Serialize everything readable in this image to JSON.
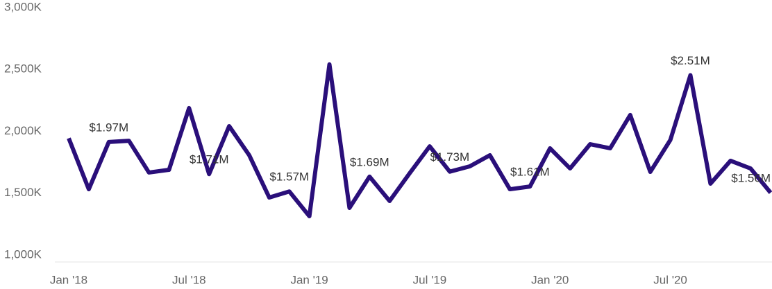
{
  "chart_data": {
    "type": "line",
    "categories": [
      "Jan '18",
      null,
      null,
      null,
      null,
      null,
      "Jul '18",
      null,
      null,
      null,
      null,
      null,
      "Jan '19",
      null,
      null,
      null,
      null,
      null,
      "Jul '19",
      null,
      null,
      null,
      null,
      null,
      "Jan '20",
      null,
      null,
      null,
      null,
      null,
      "Jul '20",
      null,
      null,
      null,
      null,
      null
    ],
    "series": [
      {
        "color": "#2a0f7a",
        "values": [
          2000,
          1588,
          1970,
          1980,
          1723,
          1745,
          2244,
          1710,
          2098,
          1863,
          1521,
          1570,
          1370,
          2597,
          1437,
          1690,
          1493,
          1717,
          1935,
          1730,
          1773,
          1863,
          1588,
          1610,
          1919,
          1756,
          1952,
          1919,
          2188,
          1728,
          1986,
          2510,
          1633,
          1818,
          1756,
          1560
        ],
        "value_labels": [
          null,
          null,
          "$1.97M",
          null,
          null,
          null,
          null,
          "$1.71M",
          null,
          null,
          null,
          "$1.57M",
          null,
          null,
          null,
          "$1.69M",
          null,
          null,
          null,
          "$1.73M",
          null,
          null,
          null,
          "$1.61M",
          null,
          null,
          null,
          null,
          null,
          null,
          null,
          "$2.51M",
          null,
          null,
          null,
          "$1.56M"
        ]
      }
    ],
    "ylim": [
      1000,
      3000
    ],
    "yticks": [
      {
        "value": 1000,
        "label": "1,000K"
      },
      {
        "value": 1500,
        "label": "1,500K"
      },
      {
        "value": 2000,
        "label": "2,000K"
      },
      {
        "value": 2500,
        "label": "2,500K"
      },
      {
        "value": 3000,
        "label": "3,000K"
      }
    ]
  }
}
